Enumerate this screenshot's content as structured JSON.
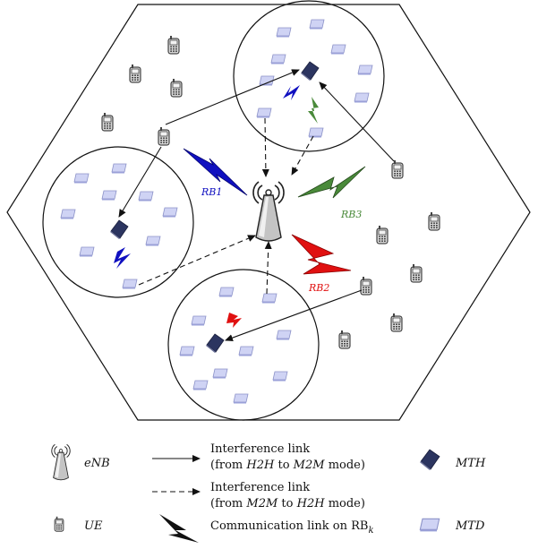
{
  "rb_labels": {
    "rb1": "RB1",
    "rb2": "RB2",
    "rb3": "RB3"
  },
  "colors": {
    "rb1": "#1010c0",
    "rb2": "#e01010",
    "rb3": "#4a8a3a",
    "mth": "#2c3560",
    "mtd": "#c8cdf2"
  },
  "legend": {
    "enb": "eNB",
    "ue": "UE",
    "h2h_line1": "Interference link",
    "h2h_line2_pre": "(from ",
    "h2h_line2_a": "H2H",
    "h2h_line2_mid": " to ",
    "h2h_line2_b": "M2M",
    "h2h_line2_post": " mode)",
    "m2m_line1": "Interference link",
    "m2m_line2_pre": "(from ",
    "m2m_line2_a": "M2M",
    "m2m_line2_mid": " to ",
    "m2m_line2_b": "H2H",
    "m2m_line2_post": " mode)",
    "comm_text": "Communication link on RB",
    "comm_sub": "k",
    "mth": "MTH",
    "mtd": "MTD"
  }
}
